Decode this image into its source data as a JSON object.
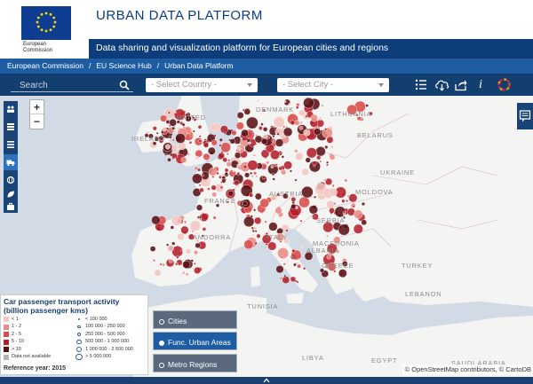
{
  "header": {
    "logo_text_line1": "European",
    "logo_text_line2": "Commission",
    "title": "URBAN DATA PLATFORM",
    "subtitle": "Data sharing and visualization platform for European cities and regions"
  },
  "breadcrumb": [
    "European Commission",
    "EU Science Hub",
    "Urban Data Platform"
  ],
  "toolbar": {
    "search_placeholder": "Search",
    "country_select": "- Select Country -",
    "city_select": "- Select City -",
    "info_label": "i"
  },
  "map": {
    "labels": [
      {
        "text": "UNITED",
        "id": "united"
      },
      {
        "text": "IRELAND",
        "id": "ireland"
      },
      {
        "text": "DENMARK",
        "id": "denmark"
      },
      {
        "text": "LITHUANIA",
        "id": "lithuania"
      },
      {
        "text": "BELARUS",
        "id": "belarus"
      },
      {
        "text": "UKRAINE",
        "id": "ukraine"
      },
      {
        "text": "FRANCE",
        "id": "france"
      },
      {
        "text": "AUSTRIA",
        "id": "austria"
      },
      {
        "text": "MOLDOVA",
        "id": "moldova"
      },
      {
        "text": "SERBIA",
        "id": "serbia"
      },
      {
        "text": "ANDORRA",
        "id": "andorra"
      },
      {
        "text": "ITALY",
        "id": "italy"
      },
      {
        "text": "MACEDONIA",
        "id": "macedonia"
      },
      {
        "text": "ALBANIA",
        "id": "albania"
      },
      {
        "text": "GREECE",
        "id": "greece"
      },
      {
        "text": "TURKEY",
        "id": "turkey"
      },
      {
        "text": "TUNISIA",
        "id": "tunisia"
      },
      {
        "text": "LEBANON",
        "id": "lebanon"
      },
      {
        "text": "LIBYA",
        "id": "libya"
      },
      {
        "text": "EGYPT",
        "id": "egypt"
      },
      {
        "text": "SAUDI ARABIA",
        "id": "saudi"
      }
    ],
    "attribution": "© OpenStreetMap contributors, © CartoDB"
  },
  "legend": {
    "title": "Car passenger transport activity (billion passenger kms)",
    "color_classes": [
      {
        "label": "< 1",
        "color": "#f4c6c0"
      },
      {
        "label": "1 - 2",
        "color": "#e88b84"
      },
      {
        "label": "2 - 5",
        "color": "#d94d4a"
      },
      {
        "label": "5 - 10",
        "color": "#b3202a"
      },
      {
        "label": "> 10",
        "color": "#5a1116"
      },
      {
        "label": "Data not available",
        "color": "#b5b5b5"
      }
    ],
    "size_classes": [
      "< 100 000",
      "100 000 - 250 000",
      "250 000 - 500 000",
      "500 000 - 1 000 000",
      "1 000 000 - 2 500 000",
      "> 5 000 000"
    ],
    "reference_year": "Reference year: 2015"
  },
  "layers": {
    "cities": "Cities",
    "fua": "Func. Urban Areas",
    "metro": "Metro Regions"
  },
  "colors": {
    "brand_dark": "#0d3d7a",
    "toolbar": "#123e70",
    "breadcrumb": "#1f5da3"
  }
}
